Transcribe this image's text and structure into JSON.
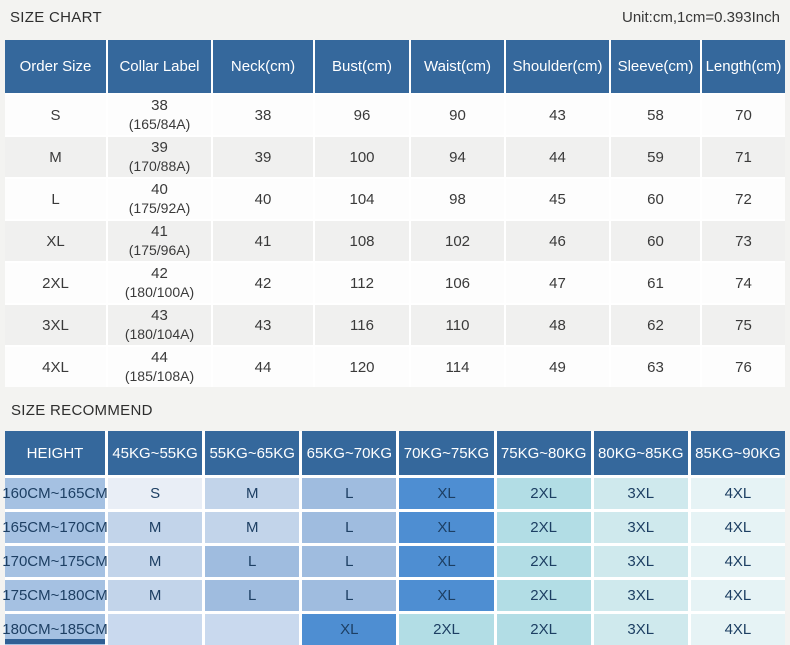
{
  "page": {
    "title": "SIZE CHART",
    "unit_note": "Unit:cm,1cm=0.393Inch",
    "recommend_title": "SIZE RECOMMEND"
  },
  "colors": {
    "header_blue": "#35689c",
    "height_col_blue": "#a5c1e2",
    "row_stripe_gray": "#f0f0ef"
  },
  "size_chart": {
    "columns": [
      "Order Size",
      "Collar Label",
      "Neck(cm)",
      "Bust(cm)",
      "Waist(cm)",
      "Shoulder(cm)",
      "Sleeve(cm)",
      "Length(cm)"
    ],
    "rows": [
      {
        "order_size": "S",
        "collar_num": "38",
        "collar_spec": "(165/84A)",
        "neck": "38",
        "bust": "96",
        "waist": "90",
        "shoulder": "43",
        "sleeve": "58",
        "length": "70"
      },
      {
        "order_size": "M",
        "collar_num": "39",
        "collar_spec": "(170/88A)",
        "neck": "39",
        "bust": "100",
        "waist": "94",
        "shoulder": "44",
        "sleeve": "59",
        "length": "71"
      },
      {
        "order_size": "L",
        "collar_num": "40",
        "collar_spec": "(175/92A)",
        "neck": "40",
        "bust": "104",
        "waist": "98",
        "shoulder": "45",
        "sleeve": "60",
        "length": "72"
      },
      {
        "order_size": "XL",
        "collar_num": "41",
        "collar_spec": "(175/96A)",
        "neck": "41",
        "bust": "108",
        "waist": "102",
        "shoulder": "46",
        "sleeve": "60",
        "length": "73"
      },
      {
        "order_size": "2XL",
        "collar_num": "42",
        "collar_spec": "(180/100A)",
        "neck": "42",
        "bust": "112",
        "waist": "106",
        "shoulder": "47",
        "sleeve": "61",
        "length": "74"
      },
      {
        "order_size": "3XL",
        "collar_num": "43",
        "collar_spec": "(180/104A)",
        "neck": "43",
        "bust": "116",
        "waist": "110",
        "shoulder": "48",
        "sleeve": "62",
        "length": "75"
      },
      {
        "order_size": "4XL",
        "collar_num": "44",
        "collar_spec": "(185/108A)",
        "neck": "44",
        "bust": "120",
        "waist": "114",
        "shoulder": "49",
        "sleeve": "63",
        "length": "76"
      }
    ]
  },
  "size_recommend": {
    "columns": [
      "HEIGHT",
      "45KG~55KG",
      "55KG~65KG",
      "65KG~70KG",
      "70KG~75KG",
      "75KG~80KG",
      "80KG~85KG",
      "85KG~90KG"
    ],
    "rows": [
      {
        "height": "160CM~165CM",
        "cells": [
          "S",
          "M",
          "L",
          "XL",
          "2XL",
          "3XL",
          "4XL"
        ]
      },
      {
        "height": "165CM~170CM",
        "cells": [
          "M",
          "M",
          "L",
          "XL",
          "2XL",
          "3XL",
          "4XL"
        ]
      },
      {
        "height": "170CM~175CM",
        "cells": [
          "M",
          "L",
          "L",
          "XL",
          "2XL",
          "3XL",
          "4XL"
        ]
      },
      {
        "height": "175CM~180CM",
        "cells": [
          "M",
          "L",
          "L",
          "XL",
          "2XL",
          "3XL",
          "4XL"
        ]
      },
      {
        "height": "180CM~185CM",
        "cells": [
          "",
          "",
          "XL",
          "2XL",
          "2XL",
          "3XL",
          "4XL"
        ]
      }
    ],
    "cell_colors": {
      "S": "#e9eef6",
      "M": "#c2d4ea",
      "L": "#9fbcdf",
      "XL": "#4e8ed2",
      "2XL": "#b2dde5",
      "3XL": "#cfe9ed",
      "4XL": "#e6f3f5",
      "": "#c9d9ee"
    }
  }
}
